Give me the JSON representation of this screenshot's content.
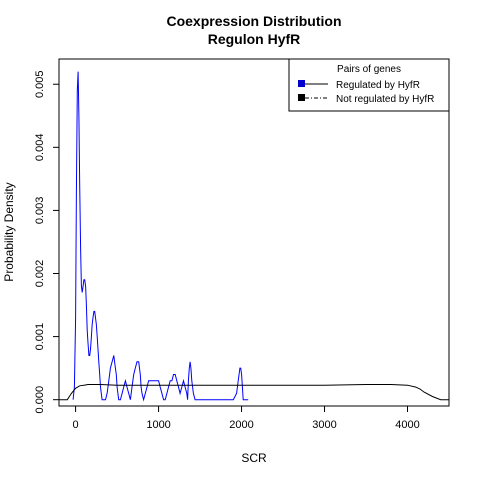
{
  "chart_data": {
    "type": "line",
    "title": "Coexpression Distribution",
    "subtitle": "Regulon HyfR",
    "xlabel": "SCR",
    "ylabel": "Probability Density",
    "xlim": [
      -200,
      4500
    ],
    "ylim": [
      -0.0001,
      0.0054
    ],
    "xticks": [
      0,
      1000,
      2000,
      3000,
      4000
    ],
    "yticks": [
      0.0,
      0.001,
      0.002,
      0.003,
      0.004,
      0.005
    ],
    "xtick_labels": [
      "0",
      "1000",
      "2000",
      "3000",
      "4000"
    ],
    "ytick_labels": [
      "0.000",
      "0.001",
      "0.002",
      "0.003",
      "0.004",
      "0.005"
    ],
    "grid": false,
    "legend": {
      "title": "Pairs of genes",
      "placement": "top-right",
      "entries": [
        "Regulated by  HyfR",
        "Not regulated by  HyfR"
      ]
    },
    "series": [
      {
        "name": "Regulated by  HyfR",
        "color": "#0000ff",
        "line_style": "solid",
        "x": [
          -30,
          -15,
          0,
          10,
          20,
          30,
          40,
          50,
          60,
          70,
          80,
          90,
          100,
          110,
          120,
          130,
          140,
          150,
          160,
          170,
          180,
          190,
          200,
          210,
          220,
          230,
          240,
          250,
          260,
          270,
          280,
          290,
          300,
          310,
          320,
          330,
          340,
          350,
          360,
          380,
          400,
          420,
          440,
          460,
          470,
          480,
          490,
          500,
          510,
          520,
          540,
          560,
          580,
          600,
          620,
          640,
          660,
          680,
          700,
          720,
          740,
          760,
          770,
          780,
          790,
          800,
          820,
          840,
          860,
          880,
          900,
          920,
          940,
          960,
          980,
          1000,
          1020,
          1040,
          1060,
          1080,
          1100,
          1120,
          1140,
          1160,
          1180,
          1200,
          1220,
          1240,
          1260,
          1280,
          1300,
          1320,
          1340,
          1350,
          1360,
          1370,
          1380,
          1390,
          1400,
          1420,
          1440,
          1500,
          1600,
          1700,
          1800,
          1900,
          1940,
          1960,
          1980,
          1990,
          2000,
          2010,
          2020,
          2040,
          2060,
          2080
        ],
        "y": [
          0.0,
          0.0002,
          0.0013,
          0.0033,
          0.0049,
          0.0052,
          0.0045,
          0.0034,
          0.0024,
          0.0018,
          0.0017,
          0.0018,
          0.0019,
          0.0019,
          0.0018,
          0.0015,
          0.0011,
          0.0009,
          0.0007,
          0.0007,
          0.0008,
          0.001,
          0.0012,
          0.0013,
          0.0014,
          0.0014,
          0.0013,
          0.0012,
          0.001,
          0.0008,
          0.0006,
          0.0004,
          0.0002,
          0.0001,
          0.0,
          0.0,
          0.0,
          0.0,
          0.0,
          0.0001,
          0.0003,
          0.0005,
          0.0006,
          0.0007,
          0.0006,
          0.0005,
          0.0004,
          0.0002,
          0.0001,
          0.0,
          0.0,
          0.0001,
          0.0002,
          0.0003,
          0.0002,
          0.0001,
          0.0,
          0.0002,
          0.0004,
          0.0005,
          0.0006,
          0.0006,
          0.0005,
          0.0004,
          0.0002,
          0.0001,
          0.0,
          0.0001,
          0.0002,
          0.0003,
          0.0003,
          0.0003,
          0.0003,
          0.0003,
          0.0003,
          0.0003,
          0.0002,
          0.0001,
          0.0,
          0.0,
          0.0001,
          0.0002,
          0.0003,
          0.0003,
          0.0004,
          0.0004,
          0.0003,
          0.0002,
          0.0001,
          0.0002,
          0.0003,
          0.0002,
          0.0001,
          0.0,
          0.0003,
          0.0005,
          0.0006,
          0.0005,
          0.0003,
          0.0001,
          0.0,
          0.0,
          0.0,
          0.0,
          0.0,
          0.0,
          0.0001,
          0.0003,
          0.0005,
          0.0005,
          0.0004,
          0.0002,
          0.0,
          0.0,
          0.0,
          0.0
        ]
      },
      {
        "name": "Not regulated by  HyfR",
        "color": "#000000",
        "line_style": "dashdot",
        "x": [
          -200,
          -100,
          -50,
          0,
          50,
          100,
          150,
          200,
          300,
          500,
          1000,
          2000,
          3000,
          3500,
          3800,
          4000,
          4100,
          4150,
          4200,
          4300,
          4400,
          4500
        ],
        "y": [
          0.0,
          0.0,
          0.0001,
          0.00018,
          0.00022,
          0.00023,
          0.00024,
          0.00024,
          0.00024,
          0.00023,
          0.00023,
          0.00023,
          0.00023,
          0.00024,
          0.00024,
          0.00023,
          0.0002,
          0.00017,
          0.00012,
          5e-05,
          0.0,
          0.0
        ]
      }
    ]
  }
}
